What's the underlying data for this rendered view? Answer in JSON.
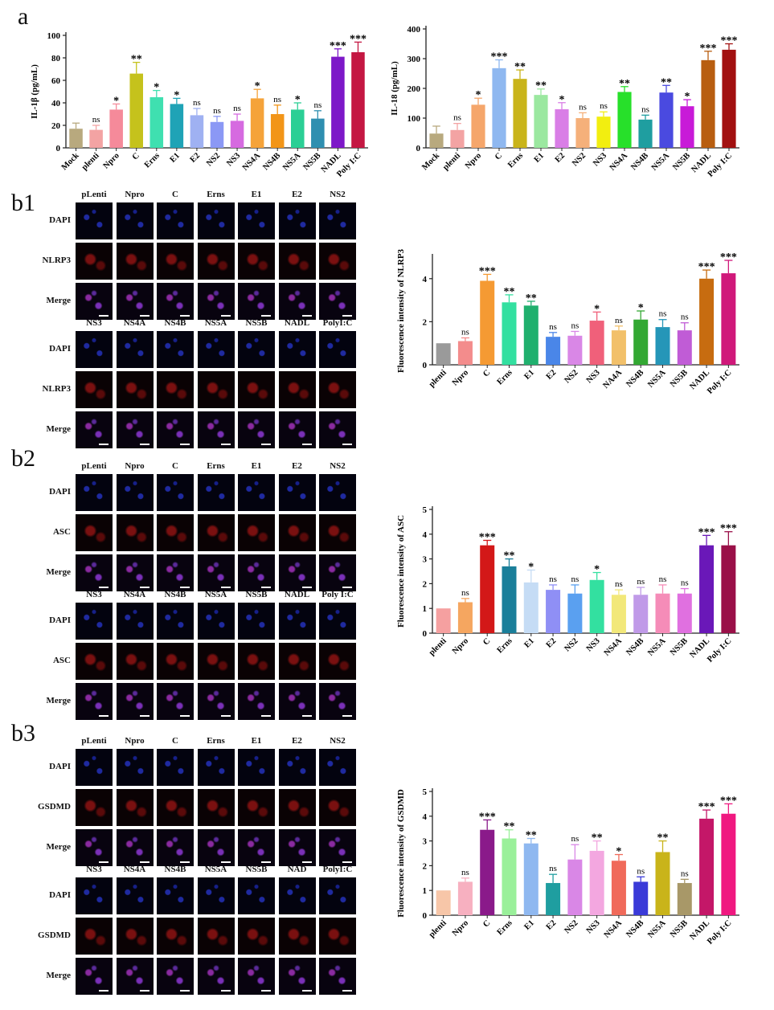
{
  "panel_labels": {
    "a": "a",
    "b1": "b1",
    "b2": "b2",
    "b3": "b3"
  },
  "chart_data": [
    {
      "id": "il1b",
      "type": "bar",
      "ylabel": "IL-1β (pg/mL)",
      "ylim": [
        0,
        100
      ],
      "yticks": [
        0,
        20,
        40,
        60,
        80,
        100
      ],
      "categories": [
        "Mock",
        "plenti",
        "Npro",
        "C",
        "Erns",
        "E1",
        "E2",
        "NS2",
        "NS3",
        "NS4A",
        "NS4B",
        "NS5A",
        "NS5B",
        "NADL",
        "Poly I:C"
      ],
      "values": [
        17,
        16,
        34,
        66,
        45,
        39,
        29,
        23,
        24,
        44,
        30,
        34,
        26,
        81,
        85
      ],
      "errors": [
        5,
        4,
        5,
        10,
        6,
        5,
        6,
        5,
        6,
        8,
        8,
        6,
        7,
        7,
        9
      ],
      "significance": [
        "",
        "ns",
        "*",
        "**",
        "*",
        "*",
        "ns",
        "ns",
        "ns",
        "*",
        "ns",
        "*",
        "ns",
        "***",
        "***"
      ],
      "colors": [
        "#b8a97e",
        "#f3a3a3",
        "#f58a9a",
        "#c5c21c",
        "#3fe0b0",
        "#1fa3b6",
        "#9fb1f2",
        "#8b98f5",
        "#d66ae0",
        "#f5a33a",
        "#f29518",
        "#2bcf95",
        "#2f8fb0",
        "#7d18c8",
        "#c41742"
      ]
    },
    {
      "id": "il18",
      "type": "bar",
      "ylabel": "IL-18 (pg/mL)",
      "ylim": [
        0,
        400
      ],
      "yticks": [
        0,
        100,
        200,
        300,
        400
      ],
      "categories": [
        "Mock",
        "plenti",
        "Npro",
        "C",
        "Erns",
        "E1",
        "E2",
        "NS2",
        "NS3",
        "NS4A",
        "NS4B",
        "NS5A",
        "NS5B",
        "NADL",
        "Poly I:C"
      ],
      "values": [
        48,
        60,
        145,
        268,
        232,
        178,
        130,
        100,
        105,
        188,
        95,
        186,
        140,
        295,
        330
      ],
      "errors": [
        25,
        22,
        22,
        28,
        30,
        20,
        22,
        18,
        16,
        18,
        15,
        24,
        22,
        30,
        20
      ],
      "significance": [
        "",
        "ns",
        "*",
        "***",
        "**",
        "**",
        "*",
        "ns",
        "ns",
        "**",
        "ns",
        "**",
        "*",
        "***",
        "***"
      ],
      "colors": [
        "#b8a97e",
        "#f3a3a3",
        "#f5a66b",
        "#8fb8f0",
        "#c9b41a",
        "#9be8a0",
        "#d97ee6",
        "#f5b07a",
        "#f2ee10",
        "#27e02a",
        "#1f9ea0",
        "#4a4ae0",
        "#c81ad8",
        "#b85e10",
        "#a21010"
      ]
    },
    {
      "id": "nlrp3",
      "type": "bar",
      "ylabel": "Fluorescence intensity of NLRP3",
      "ylim": [
        0,
        5
      ],
      "yticks": [
        0,
        2,
        4
      ],
      "categories": [
        "plenti",
        "Npro",
        "C",
        "Erns",
        "E1",
        "E2",
        "NS2",
        "NS3",
        "NA4A",
        "NS4B",
        "NS5A",
        "NS5B",
        "NADL",
        "Poly I:C"
      ],
      "values": [
        1.0,
        1.1,
        3.9,
        2.9,
        2.75,
        1.3,
        1.35,
        2.05,
        1.6,
        2.1,
        1.75,
        1.6,
        4.0,
        4.25
      ],
      "errors": [
        0,
        0.15,
        0.3,
        0.35,
        0.2,
        0.2,
        0.2,
        0.4,
        0.2,
        0.4,
        0.35,
        0.35,
        0.4,
        0.6
      ],
      "significance": [
        "",
        "ns",
        "***",
        "**",
        "**",
        "ns",
        "ns",
        "*",
        "ns",
        "*",
        "ns",
        "ns",
        "***",
        "***"
      ],
      "colors": [
        "#9a9a9a",
        "#f38c8c",
        "#f59a33",
        "#33e0a0",
        "#20b06e",
        "#4a86e8",
        "#d987e6",
        "#f0607a",
        "#f2c06a",
        "#33a833",
        "#2596b8",
        "#c05cd6",
        "#c76c10",
        "#d0187a"
      ]
    },
    {
      "id": "asc",
      "type": "bar",
      "ylabel": "Fluorescence intensity of ASC",
      "ylim": [
        0,
        5
      ],
      "yticks": [
        0,
        1,
        2,
        3,
        4,
        5
      ],
      "categories": [
        "plenti",
        "Npro",
        "C",
        "Erns",
        "E1",
        "E2",
        "NS2",
        "NS3",
        "NS4A",
        "NS4B",
        "NS5A",
        "NS5B",
        "NADL",
        "Poly I:C"
      ],
      "values": [
        1.0,
        1.25,
        3.55,
        2.7,
        2.05,
        1.75,
        1.6,
        2.15,
        1.55,
        1.55,
        1.6,
        1.6,
        3.55,
        3.55
      ],
      "errors": [
        0,
        0.15,
        0.2,
        0.3,
        0.5,
        0.2,
        0.35,
        0.3,
        0.2,
        0.3,
        0.35,
        0.2,
        0.4,
        0.55
      ],
      "significance": [
        "",
        "ns",
        "***",
        "**",
        "*",
        "ns",
        "ns",
        "*",
        "ns",
        "ns",
        "ns",
        "ns",
        "***",
        "***"
      ],
      "colors": [
        "#f5a0a0",
        "#f5a660",
        "#d31818",
        "#1a7f9a",
        "#c5dcf5",
        "#8f8ff5",
        "#5aa0f0",
        "#33e0a0",
        "#f2e87a",
        "#c09ae8",
        "#f58cb8",
        "#e070e0",
        "#6a18b8",
        "#9a1048"
      ]
    },
    {
      "id": "gsdmd",
      "type": "bar",
      "ylabel": "Fluorescence intensity of GSDMD",
      "ylim": [
        0,
        5
      ],
      "yticks": [
        0,
        1,
        2,
        3,
        4,
        5
      ],
      "categories": [
        "plenti",
        "Npro",
        "C",
        "Erns",
        "E1",
        "E2",
        "NS2",
        "NS3",
        "NS4A",
        "NS4B",
        "NS5A",
        "NS5B",
        "NADL",
        "Poly I:C"
      ],
      "values": [
        1.0,
        1.35,
        3.45,
        3.1,
        2.9,
        1.3,
        2.25,
        2.6,
        2.2,
        1.35,
        2.55,
        1.3,
        3.9,
        4.1
      ],
      "errors": [
        0,
        0.15,
        0.4,
        0.35,
        0.2,
        0.35,
        0.6,
        0.4,
        0.25,
        0.2,
        0.45,
        0.15,
        0.35,
        0.4
      ],
      "significance": [
        "",
        "ns",
        "***",
        "**",
        "**",
        "ns",
        "ns",
        "**",
        "*",
        "ns",
        "**",
        "ns",
        "***",
        "***"
      ],
      "colors": [
        "#f7c6a8",
        "#f7b0c0",
        "#8a1a8a",
        "#9af09a",
        "#8fb8f0",
        "#1f9ea0",
        "#d987e6",
        "#f3a7e0",
        "#f06a5a",
        "#3a3ad8",
        "#c9b41a",
        "#a89868",
        "#c41768",
        "#f01880"
      ]
    }
  ],
  "microscopy": [
    {
      "id": "b1",
      "blocks": [
        {
          "columns": [
            "pLenti",
            "Npro",
            "C",
            "Erns",
            "E1",
            "E2",
            "NS2"
          ],
          "rows": [
            "DAPI",
            "NLRP3",
            "Merge"
          ]
        },
        {
          "columns": [
            "NS3",
            "NS4A",
            "NS4B",
            "NS5A",
            "NS5B",
            "NADL",
            "PolyI:C"
          ],
          "rows": [
            "DAPI",
            "NLRP3",
            "Merge"
          ]
        }
      ]
    },
    {
      "id": "b2",
      "blocks": [
        {
          "columns": [
            "pLenti",
            "Npro",
            "C",
            "Erns",
            "E1",
            "E2",
            "NS2"
          ],
          "rows": [
            "DAPI",
            "ASC",
            "Merge"
          ]
        },
        {
          "columns": [
            "NS3",
            "NS4A",
            "NS4B",
            "NS5A",
            "NS5B",
            "NADL",
            "Poly I:C"
          ],
          "rows": [
            "DAPI",
            "ASC",
            "Merge"
          ]
        }
      ]
    },
    {
      "id": "b3",
      "blocks": [
        {
          "columns": [
            "pLenti",
            "Npro",
            "C",
            "Erns",
            "E1",
            "E2",
            "NS2"
          ],
          "rows": [
            "DAPI",
            "GSDMD",
            "Merge"
          ]
        },
        {
          "columns": [
            "NS3",
            "NS4A",
            "NS4B",
            "NS5A",
            "NS5B",
            "NAD",
            "PolyI:C"
          ],
          "rows": [
            "DAPI",
            "GSDMD",
            "Merge"
          ]
        }
      ]
    }
  ]
}
